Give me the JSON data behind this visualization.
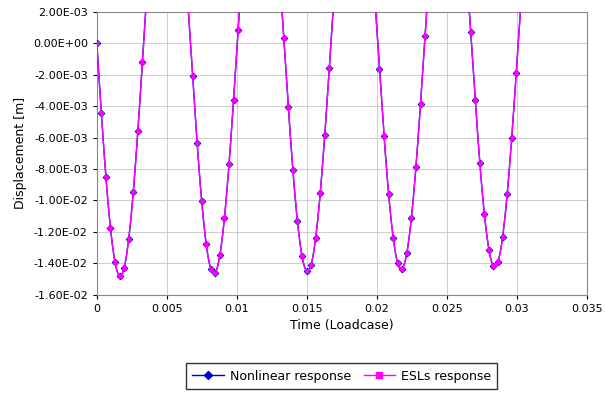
{
  "title": "",
  "xlabel": "Time (Loadcase)",
  "ylabel": "Displacement [m]",
  "xlim": [
    0,
    0.035
  ],
  "ylim": [
    -0.016,
    0.002
  ],
  "yticks": [
    0.002,
    0.0,
    -0.002,
    -0.004,
    -0.006,
    -0.008,
    -0.01,
    -0.012,
    -0.014,
    -0.016
  ],
  "ytick_labels": [
    "2.00E-03",
    "0.00E+00",
    "-2.00E-03",
    "-4.00E-03",
    "-6.00E-03",
    "-8.00E-03",
    "-1.00E-02",
    "-1.20E-02",
    "-1.40E-02",
    "-1.60E-02"
  ],
  "xticks": [
    0,
    0.005,
    0.01,
    0.015,
    0.02,
    0.025,
    0.03,
    0.035
  ],
  "xtick_labels": [
    "0",
    "0.005",
    "0.01",
    "0.015",
    "0.02",
    "0.025",
    "0.03",
    "0.035"
  ],
  "nonlinear_color": "#0000CD",
  "esl_color": "#FF00FF",
  "nonlinear_label": "Nonlinear response",
  "esl_label": "ESLs response",
  "nonlinear_marker": "D",
  "esl_marker": "s",
  "frequency": 149.5,
  "amplitude": 0.01485,
  "decay_rate": 1.5,
  "n_points": 500,
  "marker_every": 5,
  "nonlinear_markersize": 3.5,
  "esl_markersize": 3.5,
  "background_color": "#FFFFFF",
  "grid_color": "#BBBBBB",
  "legend_fontsize": 9,
  "axis_fontsize": 9,
  "tick_fontsize": 8,
  "linewidth": 1.0
}
